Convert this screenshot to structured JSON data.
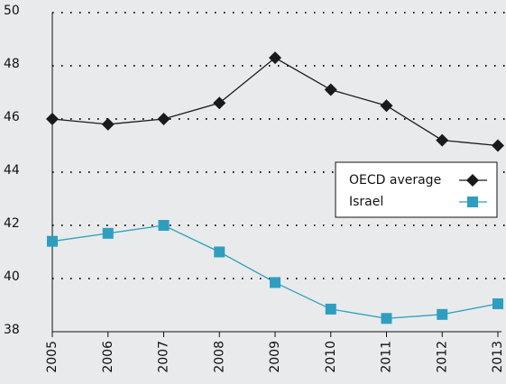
{
  "chart_data": {
    "type": "line",
    "categories": [
      "2005",
      "2006",
      "2007",
      "2008",
      "2009",
      "2010",
      "2011",
      "2012",
      "2013"
    ],
    "series": [
      {
        "name": "OECD average",
        "color": "#1a1a1a",
        "marker": "diamond",
        "values": [
          46.0,
          45.8,
          46.0,
          46.6,
          48.3,
          47.1,
          46.5,
          45.2,
          45.0
        ]
      },
      {
        "name": "Israel",
        "color": "#2e9ec0",
        "marker": "square",
        "values": [
          41.4,
          41.7,
          42.0,
          41.0,
          39.85,
          38.85,
          38.5,
          38.65,
          39.05
        ]
      }
    ],
    "ylim": [
      38,
      50
    ],
    "yticks": [
      38,
      40,
      42,
      44,
      46,
      48,
      50
    ],
    "grid": true,
    "legend": "right"
  }
}
